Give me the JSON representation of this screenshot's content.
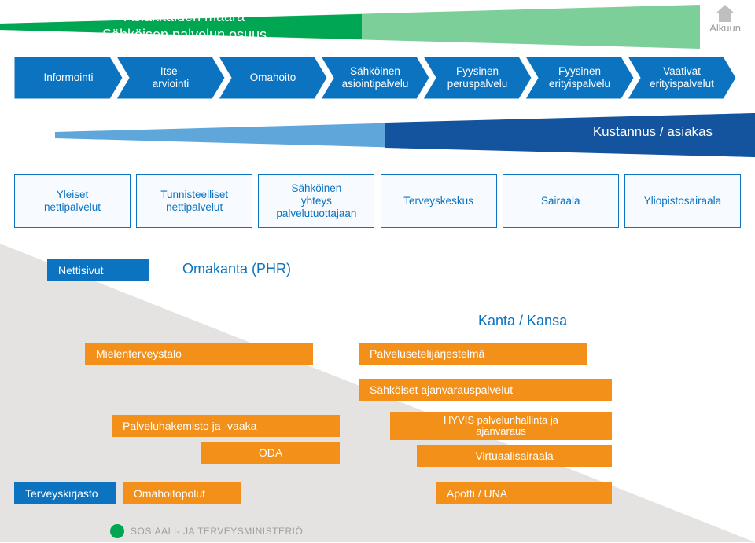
{
  "colors": {
    "green_dark": "#00a651",
    "green_light": "#7dcf9a",
    "blue_dark": "#14539d",
    "blue": "#0b73c0",
    "blue_light": "#5fa7db",
    "orange": "#f39019",
    "grey": "#9e9e9e",
    "bg_triangle": "#e4e3e1",
    "box_fill": "#f7fbff"
  },
  "alkuun": "Alkuun",
  "title_line1": "Asiakkaiden määrä",
  "title_line2": "Sähköisen palvelun osuus",
  "chevrons": [
    "Informointi",
    "Itse-\narviointi",
    "Omahoito",
    "Sähköinen\nasiointipalvelu",
    "Fyysinen\nperuspalvelu",
    "Fyysinen\nerityispalvelu",
    "Vaativat\nerityispalvelut"
  ],
  "mid_label": "Kustannus / asiakas",
  "service_boxes": [
    "Yleiset\nnettipalvelut",
    "Tunnisteelliset\nnettipalvelut",
    "Sähköinen\nyhteys\npalvelutuottajaan",
    "Terveyskeskus",
    "Sairaala",
    "Yliopistosairaala"
  ],
  "lower": {
    "nettisivut": "Nettisivut",
    "omakanta": "Omakanta (PHR)",
    "kanta": "Kanta / Kansa",
    "mielenterveystalo": "Mielenterveystalo",
    "palvelusetelij": "Palvelusetelijärjestelmä",
    "sahkoiset": "Sähköiset ajanvarauspalvelut",
    "palveluhakemisto": "Palveluhakemisto ja -vaaka",
    "hyvis": "HYVIS palvelunhallinta ja\najanvaraus",
    "oda": "ODA",
    "virtuaalisairaala": "Virtuaalisairaala",
    "terveyskirjasto": "Terveyskirjasto",
    "omahoitopolut": "Omahoitopolut",
    "apotti": "Apotti / UNA"
  },
  "footer": "SOSIAALI- JA TERVEYSMINISTERIÖ"
}
